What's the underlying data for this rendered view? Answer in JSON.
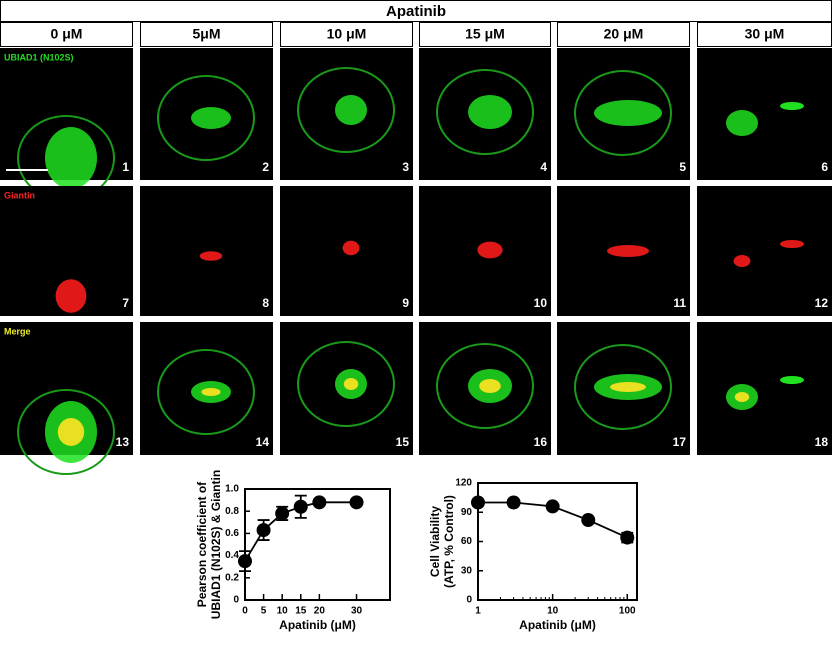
{
  "figure": {
    "title": "Apatinib",
    "columns": [
      "0 μM",
      "5μM",
      "10 μM",
      "15 μM",
      "20 μM",
      "30 μM"
    ],
    "rows": [
      "UBIAD1 (N102S)",
      "Giantin",
      "Merge"
    ],
    "panel_numbers": [
      "1",
      "2",
      "3",
      "4",
      "5",
      "6",
      "7",
      "8",
      "9",
      "10",
      "11",
      "12",
      "13",
      "14",
      "15",
      "16",
      "17",
      "18"
    ]
  },
  "chart_data": [
    {
      "type": "line",
      "xlabel": "Apatinib (μM)",
      "ylabel": [
        "Pearson coefficient of",
        "UBIAD1 (N102S) & Giantin"
      ],
      "x": [
        0,
        5,
        10,
        15,
        20,
        30
      ],
      "series": [
        {
          "color": "#000000",
          "values": [
            0.35,
            0.63,
            0.78,
            0.84,
            0.88,
            0.88
          ],
          "errors": [
            0.09,
            0.09,
            0.06,
            0.1,
            0.02,
            0.02
          ]
        }
      ],
      "xlim": [
        0,
        39
      ],
      "ylim": [
        0,
        1
      ],
      "xticks": [
        0,
        5,
        10,
        15,
        20,
        30
      ],
      "yticks": [
        0,
        0.2,
        0.4,
        0.6,
        0.8,
        {
          "value": 1,
          "label": "1.0"
        }
      ]
    },
    {
      "type": "line",
      "xlabel": "Apatinib (μM)",
      "ylabel": [
        "Cell Viability",
        "(ATP, % Control)"
      ],
      "log_x": true,
      "x": [
        1,
        3,
        10,
        30,
        100
      ],
      "series": [
        {
          "color": "#000000",
          "values": [
            100,
            100,
            96,
            82,
            64
          ],
          "errors": [
            0,
            0,
            0,
            0,
            5
          ]
        }
      ],
      "xlim": [
        1,
        135
      ],
      "ylim": [
        0,
        120
      ],
      "xticks": [
        1,
        10,
        100
      ],
      "yticks": [
        0,
        30,
        60,
        90,
        120
      ]
    }
  ]
}
